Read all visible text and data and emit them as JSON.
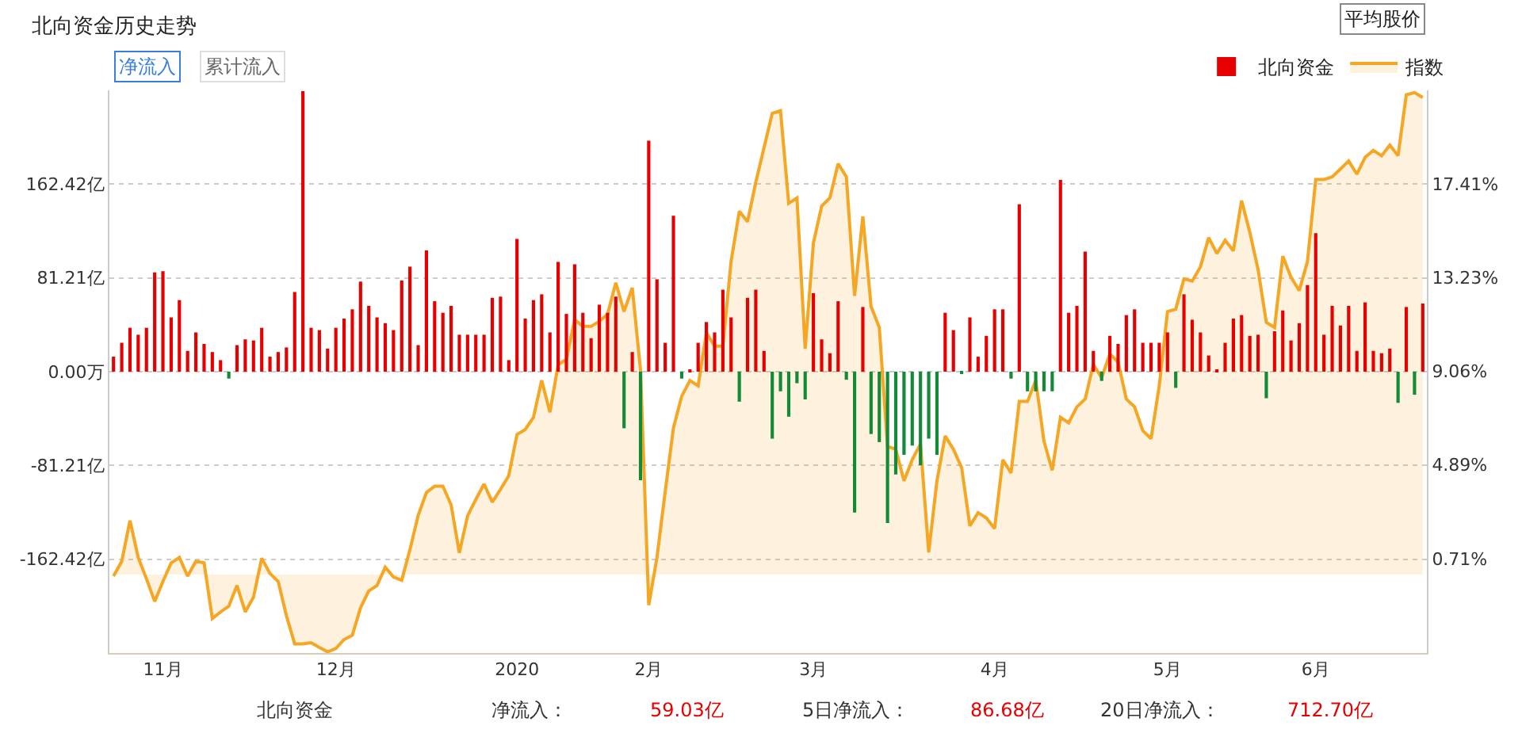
{
  "chart_data": {
    "type": "bar",
    "title": "北向资金历史走势",
    "categories": [
      null,
      null,
      null,
      null,
      null,
      null,
      "11月",
      null,
      null,
      null,
      null,
      null,
      null,
      null,
      null,
      null,
      null,
      null,
      null,
      null,
      null,
      null,
      null,
      null,
      null,
      null,
      null,
      "12月",
      null,
      null,
      null,
      null,
      null,
      null,
      null,
      null,
      null,
      null,
      null,
      null,
      null,
      null,
      null,
      null,
      null,
      null,
      null,
      null,
      null,
      "2020",
      null,
      null,
      null,
      null,
      null,
      null,
      null,
      null,
      null,
      null,
      null,
      null,
      null,
      null,
      null,
      "2月",
      null,
      null,
      null,
      null,
      null,
      null,
      null,
      null,
      null,
      null,
      null,
      null,
      null,
      null,
      null,
      null,
      null,
      null,
      null,
      "3月",
      null,
      null,
      null,
      null,
      null,
      null,
      null,
      null,
      null,
      null,
      null,
      null,
      null,
      null,
      null,
      null,
      null,
      null,
      null,
      null,
      null,
      "4月",
      null,
      null,
      null,
      null,
      null,
      null,
      null,
      null,
      null,
      null,
      null,
      null,
      null,
      null,
      null,
      null,
      null,
      null,
      null,
      null,
      "5月",
      null,
      null,
      null,
      null,
      null,
      null,
      null,
      null,
      null,
      null,
      null,
      null,
      null,
      null,
      null,
      null,
      null,
      "6月",
      null,
      null,
      null,
      null,
      null,
      null,
      null,
      null,
      null,
      null,
      null,
      null,
      null
    ],
    "series": [
      {
        "name": "北向资金",
        "values": [
          13,
          25,
          38,
          32,
          38,
          86,
          87,
          47,
          62,
          18,
          34,
          24,
          17,
          10,
          -6,
          23,
          28,
          27,
          38,
          13,
          17,
          21,
          69,
          243,
          38,
          36,
          20,
          38,
          46,
          54,
          78,
          57,
          47,
          42,
          36,
          79,
          91,
          23,
          105,
          61,
          51,
          57,
          32,
          32,
          32,
          32,
          64,
          65,
          10,
          115,
          46,
          62,
          67,
          34,
          95,
          50,
          93,
          51,
          29,
          58,
          51,
          65,
          -49,
          17,
          -94,
          200,
          80,
          25,
          135,
          -6,
          2,
          25,
          43,
          34,
          71,
          47,
          -26,
          64,
          71,
          18,
          -58,
          -17,
          -39,
          -10,
          -24,
          68,
          28,
          16,
          61,
          -7,
          -122,
          56,
          -54,
          -61,
          -131,
          -89,
          -72,
          -64,
          -81,
          -58,
          -72,
          51,
          36,
          -2,
          47,
          13,
          31,
          54,
          54,
          -6,
          145,
          -17,
          -17,
          -17,
          -17,
          166,
          51,
          57,
          104,
          18,
          -8,
          31,
          24,
          49,
          54,
          25,
          25,
          25,
          34,
          -14,
          67,
          45,
          34,
          14,
          1,
          25,
          46,
          49,
          31,
          32,
          -23,
          35,
          53,
          27,
          42,
          75,
          120,
          32,
          57,
          40,
          57,
          18,
          60,
          18,
          16,
          20,
          -27,
          56,
          -20,
          59.03
        ],
        "colors": [
          "#e60000",
          "#e60000",
          "#e60000",
          "#e60000",
          "#e60000",
          "#e60000",
          "#e60000",
          "#e60000",
          "#e60000",
          "#e60000",
          "#e60000",
          "#e60000",
          "#e60000",
          "#e60000",
          "#138a36",
          "#e60000",
          "#e60000",
          "#e60000",
          "#e60000",
          "#e60000",
          "#e60000",
          "#e60000",
          "#e60000",
          "#e60000",
          "#e60000",
          "#e60000",
          "#e60000",
          "#e60000",
          "#e60000",
          "#e60000",
          "#e60000",
          "#e60000",
          "#e60000",
          "#e60000",
          "#e60000",
          "#e60000",
          "#e60000",
          "#e60000",
          "#e60000",
          "#e60000",
          "#e60000",
          "#e60000",
          "#e60000",
          "#e60000",
          "#e60000",
          "#e60000",
          "#e60000",
          "#e60000",
          "#e60000",
          "#e60000",
          "#e60000",
          "#e60000",
          "#e60000",
          "#e60000",
          "#e60000",
          "#e60000",
          "#e60000",
          "#e60000",
          "#e60000",
          "#e60000",
          "#e60000",
          "#e60000",
          "#138a36",
          "#e60000",
          "#138a36",
          "#e60000",
          "#e60000",
          "#e60000",
          "#e60000",
          "#138a36",
          "#e60000",
          "#e60000",
          "#e60000",
          "#e60000",
          "#e60000",
          "#e60000",
          "#138a36",
          "#e60000",
          "#e60000",
          "#e60000",
          "#138a36",
          "#138a36",
          "#138a36",
          "#138a36",
          "#138a36",
          "#e60000",
          "#e60000",
          "#e60000",
          "#e60000",
          "#138a36",
          "#138a36",
          "#e60000",
          "#138a36",
          "#138a36",
          "#138a36",
          "#138a36",
          "#138a36",
          "#138a36",
          "#138a36",
          "#138a36",
          "#138a36",
          "#e60000",
          "#e60000",
          "#138a36",
          "#e60000",
          "#e60000",
          "#e60000",
          "#e60000",
          "#e60000",
          "#138a36",
          "#e60000",
          "#138a36",
          "#138a36",
          "#138a36",
          "#138a36",
          "#e60000",
          "#e60000",
          "#e60000",
          "#e60000",
          "#e60000",
          "#138a36",
          "#e60000",
          "#e60000",
          "#e60000",
          "#e60000",
          "#e60000",
          "#e60000",
          "#e60000",
          "#e60000",
          "#138a36",
          "#e60000",
          "#e60000",
          "#e60000",
          "#e60000",
          "#e60000",
          "#e60000",
          "#e60000",
          "#e60000",
          "#e60000",
          "#e60000",
          "#138a36",
          "#e60000",
          "#e60000",
          "#e60000",
          "#e60000",
          "#e60000",
          "#e60000",
          "#e60000",
          "#e60000",
          "#e60000",
          "#e60000",
          "#e60000",
          "#e60000",
          "#e60000",
          "#e60000",
          "#e60000",
          "#138a36",
          "#e60000",
          "#138a36",
          "#e60000"
        ]
      },
      {
        "name": "指数",
        "type": "area",
        "axis": "y2",
        "color": "#f5a623",
        "values": [
          -0.07,
          0.59,
          2.41,
          0.76,
          -0.19,
          -1.2,
          -0.31,
          0.52,
          0.76,
          -0.07,
          0.59,
          0.52,
          -1.96,
          -1.67,
          -1.41,
          -0.49,
          -1.67,
          -1.01,
          0.73,
          0.05,
          -0.31,
          -1.84,
          -3.09,
          -3.09,
          -3.04,
          -3.25,
          -3.45,
          -3.3,
          -2.9,
          -2.71,
          -1.48,
          -0.73,
          -0.49,
          0.33,
          -0.11,
          -0.26,
          1.11,
          2.64,
          3.66,
          3.94,
          3.94,
          3.11,
          0.97,
          2.62,
          3.35,
          4.04,
          3.23,
          3.8,
          4.41,
          6.25,
          6.47,
          7.01,
          8.66,
          7.24,
          9.37,
          9.6,
          11.37,
          11.07,
          11.07,
          11.3,
          11.61,
          13.02,
          11.73,
          12.79,
          9.13,
          -1.37,
          0.76,
          3.7,
          6.54,
          7.95,
          8.66,
          8.42,
          10.78,
          10.19,
          10.19,
          13.97,
          16.21,
          15.74,
          17.5,
          19.04,
          20.57,
          20.69,
          16.56,
          16.8,
          10.07,
          14.79,
          16.44,
          16.8,
          18.33,
          17.74,
          12.43,
          15.97,
          11.96,
          11.02,
          5.71,
          5.59,
          4.18,
          5.12,
          5.83,
          0.99,
          4.18,
          6.18,
          5.59,
          4.77,
          2.17,
          2.76,
          2.53,
          2.05,
          5.12,
          4.53,
          7.72,
          7.72,
          8.66,
          5.95,
          4.65,
          7.01,
          6.77,
          7.48,
          7.83,
          9.37,
          8.78,
          9.84,
          9.48,
          7.83,
          7.48,
          6.42,
          6.06,
          8.42,
          11.73,
          11.84,
          13.19,
          13.09,
          13.73,
          15.03,
          14.32,
          14.91,
          14.44,
          16.68,
          15.26,
          13.61,
          11.25,
          11.02,
          14.2,
          13.26,
          12.67,
          13.97,
          17.62,
          17.62,
          17.74,
          18.09,
          18.45,
          17.86,
          18.61,
          18.92,
          18.68,
          19.16,
          18.68,
          21.4,
          21.5,
          21.28
        ]
      }
    ],
    "ylim": [
      -243.63,
      243.63
    ],
    "yticks": [
      {
        "value": -162.42,
        "label": "-162.42亿"
      },
      {
        "value": -81.21,
        "label": "-81.21亿"
      },
      {
        "value": 0,
        "label": "0.00万"
      },
      {
        "value": 81.21,
        "label": "81.21亿"
      },
      {
        "value": 162.42,
        "label": "162.42亿"
      }
    ],
    "y2lim": [
      -3.5,
      21.6
    ],
    "y2ticks": [
      {
        "value": 0.71,
        "label": "0.71%"
      },
      {
        "value": 4.89,
        "label": "4.89%"
      },
      {
        "value": 9.06,
        "label": "9.06%"
      },
      {
        "value": 13.23,
        "label": "13.23%"
      },
      {
        "value": 17.41,
        "label": "17.41%"
      }
    ],
    "grid": "y",
    "legend": "top right",
    "annotations": [
      "净流入",
      "累计流入",
      "平均股价",
      "北向资金",
      "净流入：",
      "59.03亿",
      "5日净流入：",
      "86.68亿",
      "20日净流入：",
      "712.70亿"
    ]
  }
}
